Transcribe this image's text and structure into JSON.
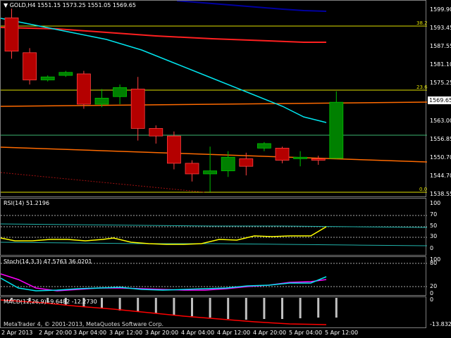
{
  "main": {
    "title": "▼ GOLD,H4  1551.15  1573.25  1551.05  1569.65",
    "price_scale": [
      "1599.90",
      "1593.45",
      "1587.55",
      "1581.10",
      "1575.25",
      "1569.65",
      "1563.00",
      "1556.85",
      "1550.70",
      "1544.70",
      "1538.55"
    ],
    "current_price": "1569.65",
    "fib_labels": [
      "38.2",
      "23.6",
      "0.0"
    ]
  },
  "rsi": {
    "title": "RSI(14) 51.2196",
    "scale": [
      "100",
      "70",
      "50",
      "30",
      "0"
    ]
  },
  "stoch": {
    "title": "Stoch(14,3,3) 47.5763 36.0201",
    "scale": [
      "100",
      "80",
      "20",
      "0"
    ]
  },
  "macd": {
    "title": "MACD(12,26,9) -9.6482 -12.2730",
    "scale": [
      "0",
      "-13.832"
    ],
    "footer": "MetaTrader 4, © 2001-2013, MetaQuotes Software Corp."
  },
  "time_axis": [
    "2 Apr 2013",
    "2 Apr 20:00",
    "3 Apr 04:00",
    "3 Apr 12:00",
    "3 Apr 20:00",
    "4 Apr 04:00",
    "4 Apr 12:00",
    "4 Apr 20:00",
    "5 Apr 04:00",
    "5 Apr 12:00"
  ],
  "colors": {
    "bull_candle": "#008000",
    "bear_candle": "#b40000",
    "ma_fast": "#00e5ee",
    "ma_slow": "#ff2020",
    "ma_long": "#0000a0",
    "fib": "#e0e000",
    "trend": "#ff6a00",
    "rsi_line": "#ffff00",
    "stoch_main": "#00e5ee",
    "stoch_signal": "#ff00ff",
    "macd_hist": "#c0c0c0",
    "macd_signal": "#ff0000"
  },
  "chart_data": {
    "type": "candlestick",
    "symbol": "GOLD",
    "timeframe": "H4",
    "ohlc_last": {
      "open": 1551.15,
      "high": 1573.25,
      "low": 1551.05,
      "close": 1569.65
    },
    "ylim": [
      1538.55,
      1599.9
    ],
    "candles": [
      {
        "o": 1597.5,
        "h": 1600.5,
        "c": 1586.5,
        "l": 1584.0
      },
      {
        "o": 1586.0,
        "h": 1587.5,
        "c": 1577.0,
        "l": 1575.5
      },
      {
        "o": 1577.0,
        "h": 1578.5,
        "c": 1578.0,
        "l": 1576.5
      },
      {
        "o": 1578.5,
        "h": 1580.0,
        "c": 1579.5,
        "l": 1578.0
      },
      {
        "o": 1579.0,
        "h": 1580.0,
        "c": 1569.0,
        "l": 1567.5
      },
      {
        "o": 1569.0,
        "h": 1574.0,
        "c": 1571.0,
        "l": 1568.0
      },
      {
        "o": 1571.5,
        "h": 1575.5,
        "c": 1574.5,
        "l": 1569.0
      },
      {
        "o": 1574.0,
        "h": 1578.0,
        "c": 1561.0,
        "l": 1557.0
      },
      {
        "o": 1561.0,
        "h": 1562.0,
        "c": 1558.5,
        "l": 1556.0
      },
      {
        "o": 1558.5,
        "h": 1560.0,
        "c": 1549.5,
        "l": 1547.5
      },
      {
        "o": 1549.5,
        "h": 1550.5,
        "c": 1546.0,
        "l": 1543.5
      },
      {
        "o": 1546.0,
        "h": 1555.0,
        "c": 1547.0,
        "l": 1540.0
      },
      {
        "o": 1547.0,
        "h": 1553.5,
        "c": 1551.5,
        "l": 1545.0
      },
      {
        "o": 1551.0,
        "h": 1553.0,
        "c": 1548.5,
        "l": 1545.5
      },
      {
        "o": 1554.5,
        "h": 1556.5,
        "c": 1556.0,
        "l": 1553.5
      },
      {
        "o": 1554.5,
        "h": 1555.0,
        "c": 1550.5,
        "l": 1549.5
      },
      {
        "o": 1551.0,
        "h": 1553.5,
        "c": 1551.5,
        "l": 1548.5
      },
      {
        "o": 1551.0,
        "h": 1552.0,
        "c": 1550.5,
        "l": 1549.0
      },
      {
        "o": 1551.15,
        "h": 1573.25,
        "c": 1569.65,
        "l": 1551.05
      }
    ]
  }
}
